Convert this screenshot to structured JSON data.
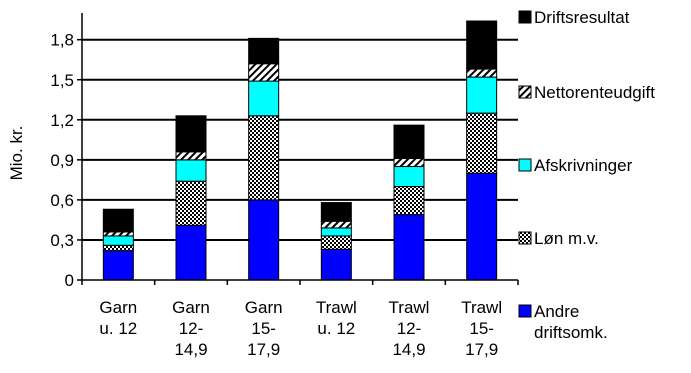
{
  "chart_data": {
    "type": "bar",
    "stacked": true,
    "ylabel": "Mio. kr.",
    "ylim": [
      0,
      2.0
    ],
    "yticks": [
      0,
      0.3,
      0.6,
      0.9,
      1.2,
      1.5,
      1.8
    ],
    "ytick_labels": [
      "0",
      "0,3",
      "0,6",
      "0,9",
      "1,2",
      "1,5",
      "1,8"
    ],
    "grid": true,
    "legend_position": "right",
    "categories": [
      [
        "Garn",
        "u. 12"
      ],
      [
        "Garn",
        "12-",
        "14,9"
      ],
      [
        "Garn",
        "15-",
        "17,9"
      ],
      [
        "Trawl",
        "u. 12"
      ],
      [
        "Trawl",
        "12-",
        "14,9"
      ],
      [
        "Trawl",
        "15-",
        "17,9"
      ]
    ],
    "series": [
      {
        "name": "Andre driftsomk.",
        "legend_lines": [
          "Andre",
          "driftsomk."
        ],
        "color": "#0000ff",
        "pattern": "solid",
        "values": [
          0.22,
          0.41,
          0.6,
          0.23,
          0.49,
          0.8
        ]
      },
      {
        "name": "Løn m.v.",
        "legend_lines": [
          "Løn m.v."
        ],
        "color": "#000000",
        "pattern": "check",
        "values": [
          0.04,
          0.33,
          0.63,
          0.1,
          0.21,
          0.45
        ]
      },
      {
        "name": "Afskrivninger",
        "legend_lines": [
          "Afskrivninger"
        ],
        "color": "#00ffff",
        "pattern": "solid",
        "values": [
          0.07,
          0.16,
          0.26,
          0.06,
          0.15,
          0.27
        ]
      },
      {
        "name": "Nettorenteudgift",
        "legend_lines": [
          "Nettorenteudgift"
        ],
        "color": "#000000",
        "pattern": "hatch",
        "values": [
          0.03,
          0.06,
          0.13,
          0.05,
          0.06,
          0.06
        ]
      },
      {
        "name": "Driftsresultat",
        "legend_lines": [
          "Driftsresultat"
        ],
        "color": "#000000",
        "pattern": "solid",
        "values": [
          0.17,
          0.27,
          0.19,
          0.14,
          0.25,
          0.36
        ]
      }
    ]
  }
}
